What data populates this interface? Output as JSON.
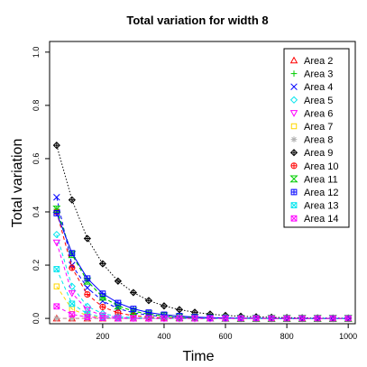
{
  "chart_data": {
    "type": "line",
    "title": "Total variation for width 8",
    "xlabel": "Time",
    "ylabel": "Total variation",
    "xlim": [
      27,
      1023
    ],
    "ylim": [
      -0.02,
      1.04
    ],
    "x_ticks": [
      200,
      400,
      600,
      800,
      1000
    ],
    "y_ticks": [
      0.0,
      0.2,
      0.4,
      0.6,
      0.8,
      1.0
    ],
    "x_tick_labels": [
      "200",
      "400",
      "600",
      "800",
      "1000"
    ],
    "y_tick_labels": [
      "0.0",
      "0.2",
      "0.4",
      "0.6",
      "0.8",
      "1.0"
    ],
    "legend_position": "top-right",
    "x": [
      50,
      100,
      150,
      200,
      250,
      300,
      350,
      400,
      450,
      500,
      550,
      600,
      650,
      700,
      750,
      800,
      850,
      900,
      950,
      1000
    ],
    "series": [
      {
        "name": "Area 2",
        "color": "#ff0000",
        "marker": "triangle-up",
        "line": "dashed",
        "values": [
          0.0,
          0.0,
          0.0,
          0.0,
          0.0,
          0.0,
          0.0,
          0.0,
          0.0,
          0.0,
          0.0,
          0.0,
          0.0,
          0.0,
          0.0,
          0.0,
          0.0,
          0.0,
          0.0,
          0.0
        ]
      },
      {
        "name": "Area 3",
        "color": "#00cd00",
        "marker": "plus",
        "line": "dashed",
        "values": [
          0.41,
          0.24,
          0.14,
          0.08,
          0.047,
          0.027,
          0.016,
          0.009,
          0.005,
          0.003,
          0.002,
          0.001,
          0.0,
          0.0,
          0.0,
          0.0,
          0.0,
          0.0,
          0.0,
          0.0
        ]
      },
      {
        "name": "Area 4",
        "color": "#0000ff",
        "marker": "cross",
        "line": "dashed",
        "values": [
          0.455,
          0.2,
          0.115,
          0.065,
          0.037,
          0.021,
          0.012,
          0.007,
          0.004,
          0.002,
          0.001,
          0.001,
          0.0,
          0.0,
          0.0,
          0.0,
          0.0,
          0.0,
          0.0,
          0.0
        ]
      },
      {
        "name": "Area 5",
        "color": "#00e5ee",
        "marker": "diamond",
        "line": "dashed",
        "values": [
          0.315,
          0.12,
          0.045,
          0.018,
          0.007,
          0.003,
          0.001,
          0.0,
          0.0,
          0.0,
          0.0,
          0.0,
          0.0,
          0.0,
          0.0,
          0.0,
          0.0,
          0.0,
          0.0,
          0.0
        ]
      },
      {
        "name": "Area 6",
        "color": "#ff00ff",
        "marker": "triangle-down",
        "line": "dashed",
        "values": [
          0.285,
          0.095,
          0.032,
          0.011,
          0.004,
          0.001,
          0.0,
          0.0,
          0.0,
          0.0,
          0.0,
          0.0,
          0.0,
          0.0,
          0.0,
          0.0,
          0.0,
          0.0,
          0.0,
          0.0
        ]
      },
      {
        "name": "Area 7",
        "color": "#ffd700",
        "marker": "square",
        "line": "dashed",
        "values": [
          0.12,
          0.035,
          0.01,
          0.003,
          0.001,
          0.0,
          0.0,
          0.0,
          0.0,
          0.0,
          0.0,
          0.0,
          0.0,
          0.0,
          0.0,
          0.0,
          0.0,
          0.0,
          0.0,
          0.0
        ]
      },
      {
        "name": "Area 8",
        "color": "#b3b3b3",
        "marker": "asterisk",
        "line": "dashed",
        "values": [
          0.0,
          0.0,
          0.0,
          0.0,
          0.0,
          0.0,
          0.0,
          0.0,
          0.0,
          0.0,
          0.0,
          0.0,
          0.0,
          0.0,
          0.0,
          0.0,
          0.0,
          0.0,
          0.0,
          0.0
        ]
      },
      {
        "name": "Area 9",
        "color": "#000000",
        "marker": "diamond-plus",
        "line": "dotted",
        "values": [
          0.65,
          0.445,
          0.3,
          0.205,
          0.14,
          0.097,
          0.067,
          0.047,
          0.033,
          0.023,
          0.016,
          0.011,
          0.008,
          0.006,
          0.004,
          0.003,
          0.002,
          0.0015,
          0.001,
          0.001
        ]
      },
      {
        "name": "Area 10",
        "color": "#ff0000",
        "marker": "circle-plus",
        "line": "dashed",
        "values": [
          0.4,
          0.19,
          0.09,
          0.043,
          0.021,
          0.01,
          0.005,
          0.002,
          0.001,
          0.0,
          0.0,
          0.0,
          0.0,
          0.0,
          0.0,
          0.0,
          0.0,
          0.0,
          0.0,
          0.0
        ]
      },
      {
        "name": "Area 11",
        "color": "#00cd00",
        "marker": "hourglass",
        "line": "dashed",
        "values": [
          0.41,
          0.24,
          0.14,
          0.08,
          0.047,
          0.027,
          0.016,
          0.009,
          0.005,
          0.003,
          0.002,
          0.001,
          0.0,
          0.0,
          0.0,
          0.0,
          0.0,
          0.0,
          0.0,
          0.0
        ]
      },
      {
        "name": "Area 12",
        "color": "#0000ff",
        "marker": "square-plus",
        "line": "solid",
        "values": [
          0.395,
          0.245,
          0.15,
          0.093,
          0.058,
          0.036,
          0.022,
          0.014,
          0.009,
          0.005,
          0.003,
          0.002,
          0.001,
          0.001,
          0.0,
          0.0,
          0.0,
          0.0,
          0.0,
          0.0
        ]
      },
      {
        "name": "Area 13",
        "color": "#00e5ee",
        "marker": "square-cross",
        "line": "dashed",
        "values": [
          0.185,
          0.055,
          0.017,
          0.005,
          0.002,
          0.0,
          0.0,
          0.0,
          0.0,
          0.0,
          0.0,
          0.0,
          0.0,
          0.0,
          0.0,
          0.0,
          0.0,
          0.0,
          0.0,
          0.0
        ]
      },
      {
        "name": "Area 14",
        "color": "#ff00ff",
        "marker": "square-x",
        "line": "dashed",
        "values": [
          0.045,
          0.015,
          0.005,
          0.002,
          0.0,
          0.0,
          0.0,
          0.0,
          0.0,
          0.0,
          0.0,
          0.0,
          0.0,
          0.0,
          0.0,
          0.0,
          0.0,
          0.0,
          0.0,
          0.0
        ]
      }
    ]
  }
}
